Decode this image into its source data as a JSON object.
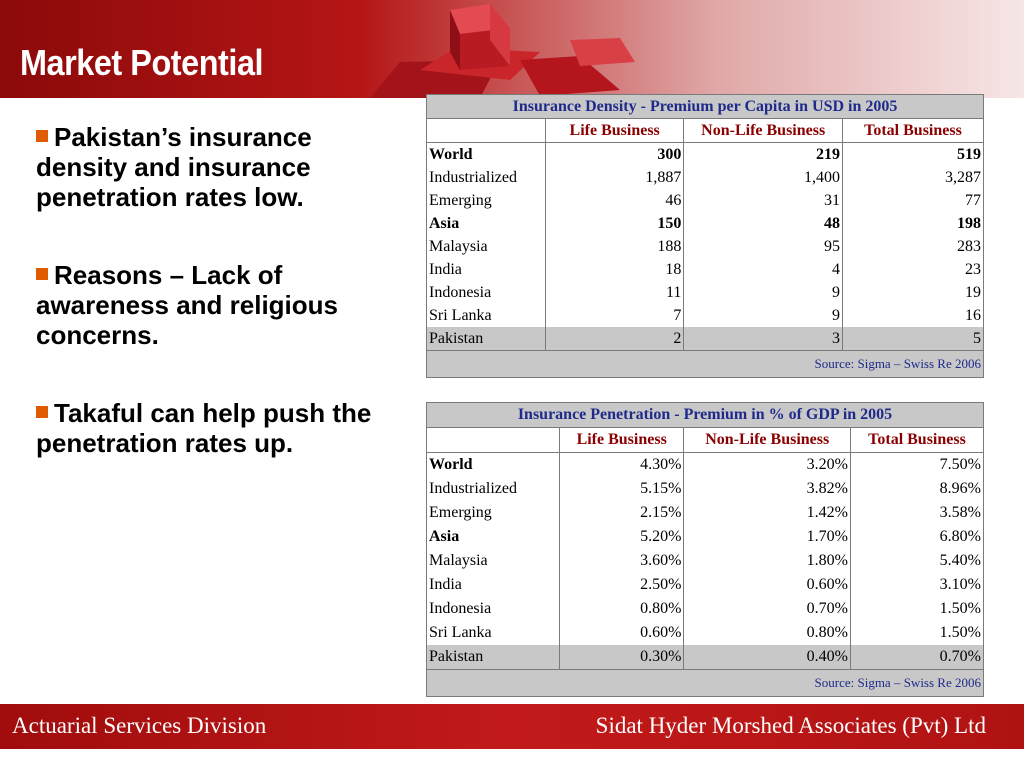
{
  "header": {
    "title": "Market Potential",
    "colors": {
      "dark_red": "#8c0a0a",
      "bullet_orange": "#e05a00",
      "table_title_blue": "#1f2a8a",
      "table_header_red": "#8b0000"
    }
  },
  "bullets": [
    {
      "text": "Pakistan’s insurance density and insurance penetration rates low."
    },
    {
      "text": "Reasons – Lack of awareness and religious concerns."
    },
    {
      "text": "Takaful can help push the penetration rates up."
    }
  ],
  "density_table": {
    "title": "Insurance Density - Premium per Capita in USD in 2005",
    "columns": [
      "Life Business",
      "Non-Life Business",
      "Total Business"
    ],
    "rows": [
      {
        "name": "World",
        "life": "300",
        "nonlife": "219",
        "total": "519"
      },
      {
        "name": "Industrialized",
        "life": "1,887",
        "nonlife": "1,400",
        "total": "3,287"
      },
      {
        "name": "Emerging",
        "life": "46",
        "nonlife": "31",
        "total": "77"
      },
      {
        "name": "Asia",
        "life": "150",
        "nonlife": "48",
        "total": "198"
      },
      {
        "name": "Malaysia",
        "life": "188",
        "nonlife": "95",
        "total": "283"
      },
      {
        "name": "India",
        "life": "18",
        "nonlife": "4",
        "total": "23"
      },
      {
        "name": "Indonesia",
        "life": "11",
        "nonlife": "9",
        "total": "19"
      },
      {
        "name": "Sri Lanka",
        "life": "7",
        "nonlife": "9",
        "total": "16"
      },
      {
        "name": "Pakistan",
        "life": "2",
        "nonlife": "3",
        "total": "5"
      }
    ],
    "source": "Source: Sigma – Swiss Re 2006"
  },
  "penetration_table": {
    "title": "Insurance Penetration - Premium in % of GDP in 2005",
    "columns": [
      "Life Business",
      "Non-Life Business",
      "Total Business"
    ],
    "rows": [
      {
        "name": "World",
        "life": "4.30%",
        "nonlife": "3.20%",
        "total": "7.50%"
      },
      {
        "name": "Industrialized",
        "life": "5.15%",
        "nonlife": "3.82%",
        "total": "8.96%"
      },
      {
        "name": "Emerging",
        "life": "2.15%",
        "nonlife": "1.42%",
        "total": "3.58%"
      },
      {
        "name": "Asia",
        "life": "5.20%",
        "nonlife": "1.70%",
        "total": "6.80%"
      },
      {
        "name": "Malaysia",
        "life": "3.60%",
        "nonlife": "1.80%",
        "total": "5.40%"
      },
      {
        "name": "India",
        "life": "2.50%",
        "nonlife": "0.60%",
        "total": "3.10%"
      },
      {
        "name": "Indonesia",
        "life": "0.80%",
        "nonlife": "0.70%",
        "total": "1.50%"
      },
      {
        "name": "Sri Lanka",
        "life": "0.60%",
        "nonlife": "0.80%",
        "total": "1.50%"
      },
      {
        "name": "Pakistan",
        "life": "0.30%",
        "nonlife": "0.40%",
        "total": "0.70%"
      }
    ],
    "source": "Source: Sigma – Swiss Re 2006"
  },
  "footer": {
    "left": "Actuarial Services Division",
    "right": "Sidat Hyder Morshed Associates (Pvt) Ltd"
  }
}
